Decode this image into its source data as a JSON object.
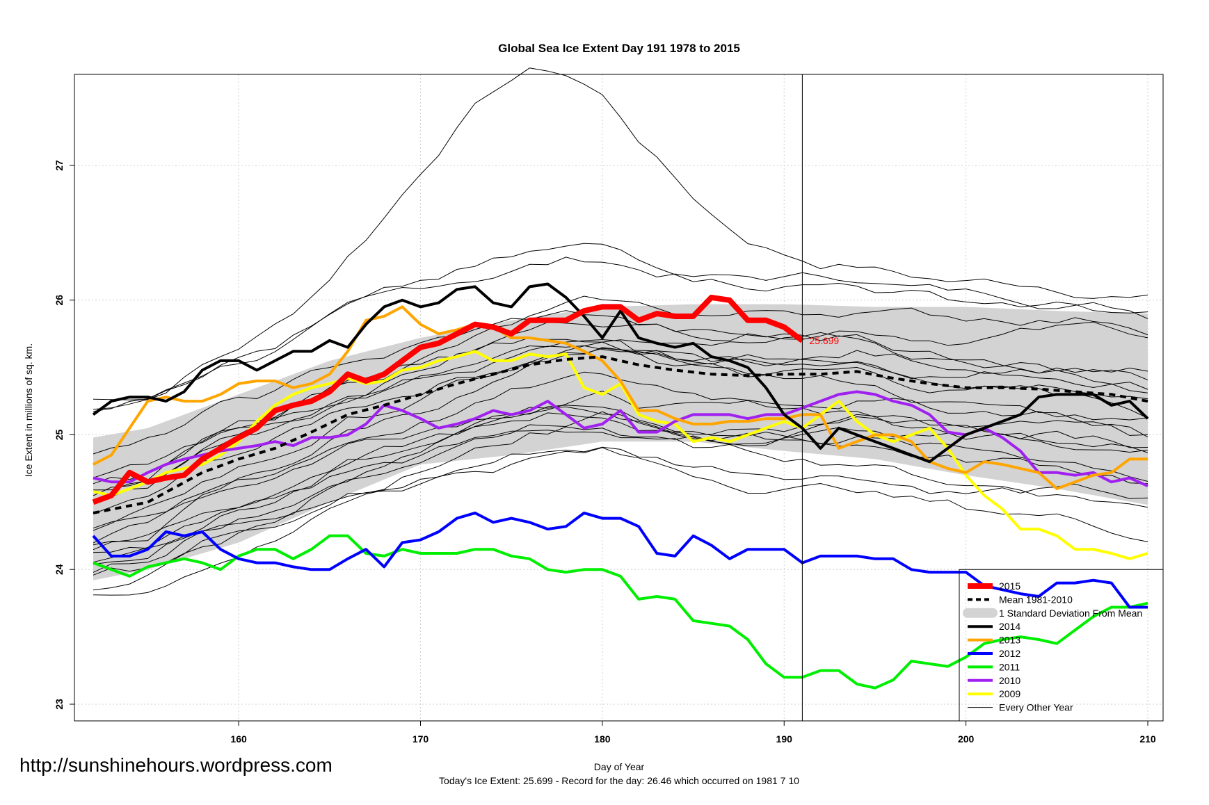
{
  "chart_data": {
    "type": "line",
    "title": "Global Sea Ice Extent Day 191 1978 to 2015",
    "xlabel": "Day of Year",
    "ylabel": "Ice Extent in millions of sq. km.",
    "xlim": [
      152,
      210
    ],
    "ylim": [
      23,
      27.5
    ],
    "x_ticks": [
      160,
      170,
      180,
      190,
      200,
      210
    ],
    "y_ticks": [
      23,
      24,
      25,
      26,
      27
    ],
    "grid": true,
    "vline_day": 191,
    "hline_value": 24,
    "series_colors": {
      "2015": "#ff0000",
      "mean": "#000000",
      "sd": "#d3d3d3",
      "2014": "#000000",
      "2013": "#ffa500",
      "2012": "#0000ff",
      "2011": "#00ee00",
      "2010": "#a020f0",
      "2009": "#ffff00",
      "other": "#000000"
    },
    "std_band": {
      "x": [
        152,
        155,
        160,
        165,
        170,
        175,
        180,
        185,
        190,
        195,
        200,
        205,
        210
      ],
      "lower": [
        23.92,
        24.0,
        24.2,
        24.5,
        24.78,
        24.85,
        24.95,
        24.95,
        24.88,
        24.82,
        24.7,
        24.6,
        24.48
      ],
      "upper": [
        24.98,
        25.05,
        25.3,
        25.55,
        25.72,
        25.85,
        25.95,
        25.97,
        25.97,
        25.95,
        25.95,
        25.92,
        25.9
      ]
    },
    "series": [
      {
        "name": "2015",
        "label": "25.699",
        "x": [
          152,
          153,
          154,
          155,
          156,
          157,
          158,
          159,
          160,
          161,
          162,
          163,
          164,
          165,
          166,
          167,
          168,
          169,
          170,
          171,
          172,
          173,
          174,
          175,
          176,
          177,
          178,
          179,
          180,
          181,
          182,
          183,
          184,
          185,
          186,
          187,
          188,
          189,
          190,
          191
        ],
        "y": [
          24.5,
          24.55,
          24.72,
          24.65,
          24.68,
          24.7,
          24.82,
          24.9,
          24.98,
          25.05,
          25.18,
          25.22,
          25.25,
          25.32,
          25.45,
          25.4,
          25.45,
          25.55,
          25.65,
          25.68,
          25.75,
          25.82,
          25.8,
          25.75,
          25.85,
          25.85,
          25.85,
          25.92,
          25.95,
          25.95,
          25.85,
          25.9,
          25.88,
          25.88,
          26.02,
          26.0,
          25.85,
          25.85,
          25.8,
          25.699
        ]
      },
      {
        "name": "Mean 1981-2010",
        "x": [
          152,
          155,
          158,
          160,
          162,
          164,
          166,
          168,
          170,
          172,
          174,
          176,
          178,
          180,
          182,
          184,
          186,
          188,
          190,
          192,
          194,
          196,
          198,
          200,
          202,
          204,
          206,
          208,
          210
        ],
        "y": [
          24.42,
          24.5,
          24.72,
          24.82,
          24.9,
          25.02,
          25.15,
          25.22,
          25.3,
          25.38,
          25.45,
          25.52,
          25.56,
          25.58,
          25.52,
          25.48,
          25.45,
          25.44,
          25.45,
          25.45,
          25.47,
          25.42,
          25.38,
          25.35,
          25.35,
          25.34,
          25.32,
          25.3,
          25.25
        ]
      },
      {
        "name": "2014",
        "x": [
          152,
          153,
          154,
          155,
          156,
          157,
          158,
          159,
          160,
          161,
          162,
          163,
          164,
          165,
          166,
          167,
          168,
          169,
          170,
          171,
          172,
          173,
          174,
          175,
          176,
          177,
          178,
          179,
          180,
          181,
          182,
          183,
          184,
          185,
          186,
          187,
          188,
          189,
          190,
          191,
          192,
          193,
          194,
          195,
          196,
          197,
          198,
          199,
          200,
          201,
          202,
          203,
          204,
          205,
          206,
          207,
          208,
          209,
          210
        ],
        "y": [
          25.15,
          25.25,
          25.28,
          25.28,
          25.25,
          25.32,
          25.48,
          25.55,
          25.55,
          25.48,
          25.55,
          25.62,
          25.62,
          25.7,
          25.65,
          25.82,
          25.95,
          26.0,
          25.95,
          25.98,
          26.08,
          26.1,
          25.98,
          25.95,
          26.1,
          26.12,
          26.02,
          25.88,
          25.72,
          25.92,
          25.72,
          25.68,
          25.65,
          25.68,
          25.58,
          25.55,
          25.5,
          25.35,
          25.15,
          25.05,
          24.9,
          25.05,
          25.0,
          24.95,
          24.9,
          24.85,
          24.8,
          24.9,
          25.0,
          25.05,
          25.1,
          25.15,
          25.28,
          25.3,
          25.3,
          25.3,
          25.22,
          25.25,
          25.12
        ]
      },
      {
        "name": "2013",
        "x": [
          152,
          153,
          154,
          155,
          156,
          157,
          158,
          159,
          160,
          161,
          162,
          163,
          164,
          165,
          166,
          167,
          168,
          169,
          170,
          171,
          172,
          173,
          174,
          175,
          176,
          177,
          178,
          179,
          180,
          181,
          182,
          183,
          184,
          185,
          186,
          187,
          188,
          189,
          190,
          191,
          192,
          193,
          194,
          195,
          196,
          197,
          198,
          199,
          200,
          201,
          202,
          203,
          204,
          205,
          206,
          207,
          208,
          209,
          210
        ],
        "y": [
          24.78,
          24.85,
          25.05,
          25.25,
          25.28,
          25.25,
          25.25,
          25.3,
          25.38,
          25.4,
          25.4,
          25.35,
          25.38,
          25.45,
          25.62,
          25.85,
          25.88,
          25.95,
          25.82,
          25.75,
          25.78,
          25.82,
          25.8,
          25.72,
          25.72,
          25.7,
          25.68,
          25.62,
          25.55,
          25.4,
          25.18,
          25.18,
          25.12,
          25.08,
          25.08,
          25.1,
          25.1,
          25.12,
          25.12,
          25.15,
          25.15,
          24.9,
          24.95,
          25.0,
          25.0,
          24.95,
          24.8,
          24.75,
          24.72,
          24.8,
          24.78,
          24.75,
          24.72,
          24.6,
          24.65,
          24.7,
          24.72,
          24.82,
          24.82
        ]
      },
      {
        "name": "2012",
        "x": [
          152,
          153,
          154,
          155,
          156,
          157,
          158,
          159,
          160,
          161,
          162,
          163,
          164,
          165,
          166,
          167,
          168,
          169,
          170,
          171,
          172,
          173,
          174,
          175,
          176,
          177,
          178,
          179,
          180,
          181,
          182,
          183,
          184,
          185,
          186,
          187,
          188,
          189,
          190,
          191,
          192,
          193,
          194,
          195,
          196,
          197,
          198,
          199,
          200,
          201,
          202,
          203,
          204,
          205,
          206,
          207,
          208,
          209,
          210
        ],
        "y": [
          24.25,
          24.1,
          24.1,
          24.15,
          24.28,
          24.25,
          24.28,
          24.15,
          24.08,
          24.05,
          24.05,
          24.02,
          24.0,
          24.0,
          24.08,
          24.15,
          24.02,
          24.2,
          24.22,
          24.28,
          24.38,
          24.42,
          24.35,
          24.38,
          24.35,
          24.3,
          24.32,
          24.42,
          24.38,
          24.38,
          24.32,
          24.12,
          24.1,
          24.25,
          24.18,
          24.08,
          24.15,
          24.15,
          24.15,
          24.05,
          24.1,
          24.1,
          24.1,
          24.08,
          24.08,
          24.0,
          23.98,
          23.98,
          23.98,
          23.88,
          23.85,
          23.82,
          23.8,
          23.9,
          23.9,
          23.92,
          23.9,
          23.72,
          23.72
        ]
      },
      {
        "name": "2011",
        "x": [
          152,
          153,
          154,
          155,
          156,
          157,
          158,
          159,
          160,
          161,
          162,
          163,
          164,
          165,
          166,
          167,
          168,
          169,
          170,
          171,
          172,
          173,
          174,
          175,
          176,
          177,
          178,
          179,
          180,
          181,
          182,
          183,
          184,
          185,
          186,
          187,
          188,
          189,
          190,
          191,
          192,
          193,
          194,
          195,
          196,
          197,
          198,
          199,
          200,
          201,
          202,
          203,
          204,
          205,
          206,
          207,
          208,
          209,
          210
        ],
        "y": [
          24.05,
          24.0,
          23.95,
          24.02,
          24.05,
          24.08,
          24.05,
          24.0,
          24.1,
          24.15,
          24.15,
          24.08,
          24.15,
          24.25,
          24.25,
          24.12,
          24.1,
          24.15,
          24.12,
          24.12,
          24.12,
          24.15,
          24.15,
          24.1,
          24.08,
          24.0,
          23.98,
          24.0,
          24.0,
          23.95,
          23.78,
          23.8,
          23.78,
          23.62,
          23.6,
          23.58,
          23.48,
          23.3,
          23.2,
          23.2,
          23.25,
          23.25,
          23.15,
          23.12,
          23.18,
          23.32,
          23.3,
          23.28,
          23.35,
          23.45,
          23.48,
          23.5,
          23.48,
          23.45,
          23.55,
          23.65,
          23.72,
          23.72,
          23.75
        ]
      },
      {
        "name": "2010",
        "x": [
          152,
          153,
          154,
          155,
          156,
          157,
          158,
          159,
          160,
          161,
          162,
          163,
          164,
          165,
          166,
          167,
          168,
          169,
          170,
          171,
          172,
          173,
          174,
          175,
          176,
          177,
          178,
          179,
          180,
          181,
          182,
          183,
          184,
          185,
          186,
          187,
          188,
          189,
          190,
          191,
          192,
          193,
          194,
          195,
          196,
          197,
          198,
          199,
          200,
          201,
          202,
          203,
          204,
          205,
          206,
          207,
          208,
          209,
          210
        ],
        "y": [
          24.68,
          24.65,
          24.65,
          24.72,
          24.78,
          24.82,
          24.85,
          24.88,
          24.9,
          24.92,
          24.95,
          24.92,
          24.98,
          24.98,
          25.0,
          25.08,
          25.22,
          25.18,
          25.12,
          25.05,
          25.08,
          25.12,
          25.18,
          25.15,
          25.18,
          25.25,
          25.15,
          25.05,
          25.08,
          25.18,
          25.02,
          25.02,
          25.1,
          25.15,
          25.15,
          25.15,
          25.12,
          25.15,
          25.15,
          25.2,
          25.25,
          25.3,
          25.32,
          25.3,
          25.25,
          25.22,
          25.15,
          25.02,
          25.0,
          25.05,
          24.98,
          24.88,
          24.72,
          24.72,
          24.7,
          24.72,
          24.65,
          24.68,
          24.62
        ]
      },
      {
        "name": "2009",
        "x": [
          152,
          153,
          154,
          155,
          156,
          157,
          158,
          159,
          160,
          161,
          162,
          163,
          164,
          165,
          166,
          167,
          168,
          169,
          170,
          171,
          172,
          173,
          174,
          175,
          176,
          177,
          178,
          179,
          180,
          181,
          182,
          183,
          184,
          185,
          186,
          187,
          188,
          189,
          190,
          191,
          192,
          193,
          194,
          195,
          196,
          197,
          198,
          199,
          200,
          201,
          202,
          203,
          204,
          205,
          206,
          207,
          208,
          209,
          210
        ],
        "y": [
          24.58,
          24.55,
          24.6,
          24.65,
          24.72,
          24.75,
          24.78,
          24.85,
          24.95,
          25.1,
          25.22,
          25.3,
          25.35,
          25.38,
          25.42,
          25.38,
          25.4,
          25.48,
          25.5,
          25.55,
          25.58,
          25.62,
          25.55,
          25.55,
          25.6,
          25.58,
          25.6,
          25.35,
          25.3,
          25.38,
          25.15,
          25.1,
          25.08,
          24.95,
          24.98,
          24.95,
          25.0,
          25.05,
          25.1,
          25.05,
          25.15,
          25.25,
          25.1,
          25.0,
          24.95,
          25.0,
          25.05,
          24.9,
          24.7,
          24.55,
          24.45,
          24.3,
          24.3,
          24.25,
          24.15,
          24.15,
          24.12,
          24.08,
          24.12
        ]
      }
    ],
    "legend": {
      "placement": "bottom-right",
      "entries": [
        "2015",
        "Mean 1981-2010",
        "1 Standard Deviation From Mean",
        "2014",
        "2013",
        "2012",
        "2011",
        "2010",
        "2009",
        "Every Other Year"
      ]
    },
    "footer_text": "Today's Ice Extent: 25.699  - Record for the day: 26.46 which occurred on 1981 7 10",
    "watermark": "http://sunshinehours.wordpress.com"
  }
}
